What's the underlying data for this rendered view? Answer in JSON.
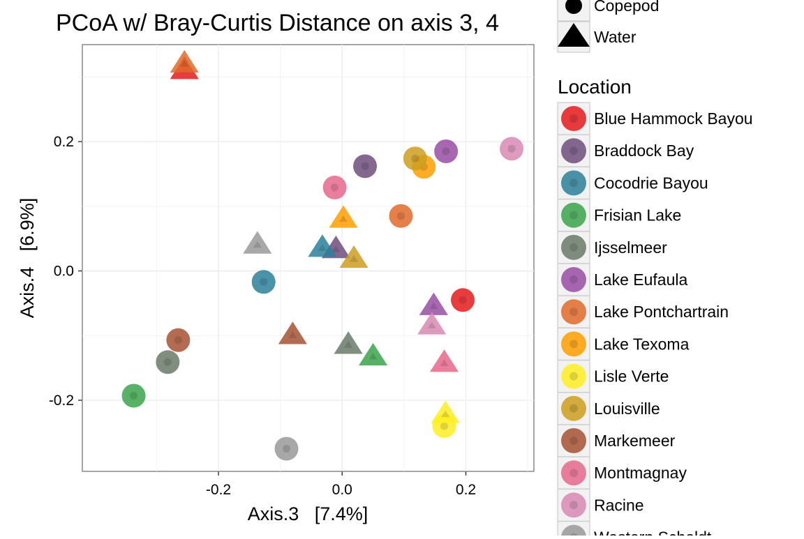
{
  "chart_data": {
    "type": "scatter",
    "title": "PCoA w/ Bray-Curtis Distance on axis 3, 4",
    "xlabel": "Axis.3   [7.4%]",
    "ylabel": "Axis.4   [6.9%]",
    "xlim": [
      -0.42,
      0.31
    ],
    "ylim": [
      -0.31,
      0.35
    ],
    "x_ticks": [
      {
        "value": -0.2,
        "label": "-0.2"
      },
      {
        "value": 0.0,
        "label": "0.0"
      },
      {
        "value": 0.2,
        "label": "0.2"
      }
    ],
    "y_ticks": [
      {
        "value": -0.2,
        "label": "-0.2"
      },
      {
        "value": 0.0,
        "label": "0.0"
      },
      {
        "value": 0.2,
        "label": "0.2"
      }
    ],
    "grid": true,
    "shape_legend": {
      "entries": [
        {
          "label": "Copepod",
          "shape": "circle"
        },
        {
          "label": "Water",
          "shape": "triangle"
        }
      ]
    },
    "color_legend": {
      "title": "Location",
      "placement": "right",
      "entries": [
        {
          "label": "Blue Hammock Bayou",
          "color": "#e41a1c"
        },
        {
          "label": "Braddock Bay",
          "color": "#6f4e7c"
        },
        {
          "label": "Cocodrie Bayou",
          "color": "#2a8099"
        },
        {
          "label": "Frisian Lake",
          "color": "#3aa44a"
        },
        {
          "label": "Ijsselmeer",
          "color": "#6a7a68"
        },
        {
          "label": "Lake Eufaula",
          "color": "#984ea3"
        },
        {
          "label": "Lake Pontchartrain",
          "color": "#e06a2a"
        },
        {
          "label": "Lake Texoma",
          "color": "#ff9f00"
        },
        {
          "label": "Lisle Verte",
          "color": "#ffee22"
        },
        {
          "label": "Louisville",
          "color": "#cc9e1e"
        },
        {
          "label": "Markemeer",
          "color": "#a65232"
        },
        {
          "label": "Montmagnay",
          "color": "#e6698c"
        },
        {
          "label": "Racine",
          "color": "#d889b4"
        },
        {
          "label": "Western Scheldt",
          "color": "#999999"
        }
      ]
    },
    "series": [
      {
        "location": "Blue Hammock Bayou",
        "points": [
          {
            "x": -0.255,
            "y": 0.31,
            "shape": "triangle"
          },
          {
            "x": 0.195,
            "y": -0.045,
            "shape": "circle"
          }
        ]
      },
      {
        "location": "Braddock Bay",
        "points": [
          {
            "x": 0.037,
            "y": 0.162,
            "shape": "circle"
          },
          {
            "x": -0.01,
            "y": 0.033,
            "shape": "triangle"
          }
        ]
      },
      {
        "location": "Cocodrie Bayou",
        "points": [
          {
            "x": -0.127,
            "y": -0.017,
            "shape": "circle"
          },
          {
            "x": -0.032,
            "y": 0.035,
            "shape": "triangle"
          }
        ]
      },
      {
        "location": "Frisian Lake",
        "points": [
          {
            "x": -0.337,
            "y": -0.193,
            "shape": "circle"
          },
          {
            "x": 0.05,
            "y": -0.133,
            "shape": "triangle"
          }
        ]
      },
      {
        "location": "Ijsselmeer",
        "points": [
          {
            "x": -0.282,
            "y": -0.141,
            "shape": "circle"
          },
          {
            "x": 0.01,
            "y": -0.115,
            "shape": "triangle"
          }
        ]
      },
      {
        "location": "Lake Eufaula",
        "points": [
          {
            "x": 0.168,
            "y": 0.185,
            "shape": "circle"
          },
          {
            "x": 0.148,
            "y": -0.055,
            "shape": "triangle"
          }
        ]
      },
      {
        "location": "Lake Pontchartrain",
        "points": [
          {
            "x": -0.255,
            "y": 0.32,
            "shape": "triangle"
          },
          {
            "x": 0.095,
            "y": 0.085,
            "shape": "circle"
          }
        ]
      },
      {
        "location": "Lake Texoma",
        "points": [
          {
            "x": 0.132,
            "y": 0.161,
            "shape": "circle"
          },
          {
            "x": 0.002,
            "y": 0.08,
            "shape": "triangle"
          }
        ]
      },
      {
        "location": "Lisle Verte",
        "points": [
          {
            "x": 0.165,
            "y": -0.24,
            "shape": "circle"
          },
          {
            "x": 0.167,
            "y": -0.222,
            "shape": "triangle"
          }
        ]
      },
      {
        "location": "Louisville",
        "points": [
          {
            "x": 0.118,
            "y": 0.174,
            "shape": "circle"
          },
          {
            "x": 0.019,
            "y": 0.018,
            "shape": "triangle"
          }
        ]
      },
      {
        "location": "Markemeer",
        "points": [
          {
            "x": -0.265,
            "y": -0.107,
            "shape": "circle"
          },
          {
            "x": -0.08,
            "y": -0.1,
            "shape": "triangle"
          }
        ]
      },
      {
        "location": "Montmagnay",
        "points": [
          {
            "x": -0.012,
            "y": 0.129,
            "shape": "circle"
          },
          {
            "x": 0.165,
            "y": -0.143,
            "shape": "triangle"
          }
        ]
      },
      {
        "location": "Racine",
        "points": [
          {
            "x": 0.274,
            "y": 0.189,
            "shape": "circle"
          },
          {
            "x": 0.145,
            "y": -0.085,
            "shape": "triangle"
          }
        ]
      },
      {
        "location": "Western Scheldt",
        "points": [
          {
            "x": -0.09,
            "y": -0.275,
            "shape": "circle"
          },
          {
            "x": -0.137,
            "y": 0.04,
            "shape": "triangle"
          }
        ]
      }
    ]
  }
}
